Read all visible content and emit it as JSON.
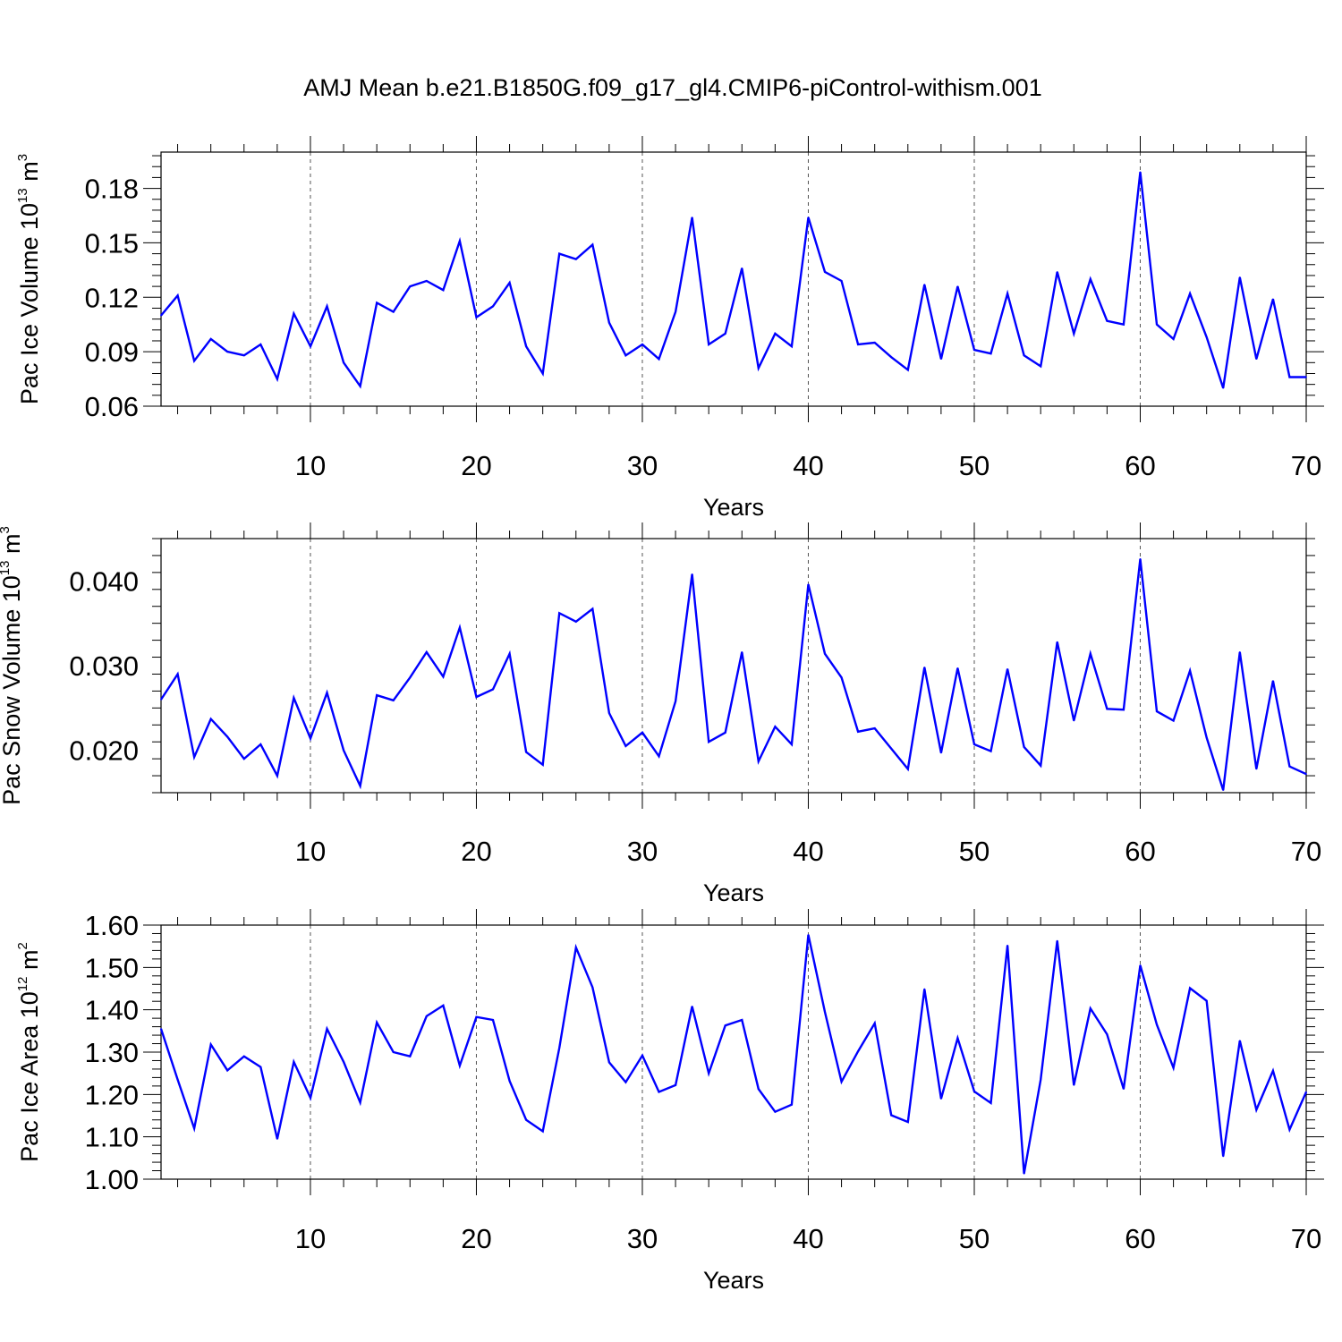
{
  "title": "AMJ Mean b.e21.B1850G.f09_g17_gl4.CMIP6-piControl-withism.001",
  "colors": {
    "series": "#0000ff",
    "axis": "#000000",
    "grid": "#555555",
    "background": "#ffffff"
  },
  "chart_data": [
    {
      "type": "line",
      "title": "AMJ Mean b.e21.B1850G.f09_g17_gl4.CMIP6-piControl-withism.001",
      "xlabel": "Years",
      "ylabel": {
        "text": "Pac Ice Volume 10",
        "exponent": "13",
        "unit": " m",
        "unit_exponent": "3"
      },
      "xlim": [
        1,
        70
      ],
      "ylim": [
        0.06,
        0.2
      ],
      "xticks": [
        10,
        20,
        30,
        40,
        50,
        60,
        70
      ],
      "xtick_labels": [
        "10",
        "20",
        "30",
        "40",
        "50",
        "60",
        "70"
      ],
      "yticks": [
        0.06,
        0.09,
        0.12,
        0.15,
        0.18
      ],
      "ytick_labels": [
        "0.06",
        "0.09",
        "0.12",
        "0.15",
        "0.18"
      ],
      "y_minor_step": 0.006,
      "grid": "vertical dashed at major x ticks",
      "series": [
        {
          "name": "Pac Ice Volume",
          "color": "#0000ff",
          "values": [
            0.11,
            0.121,
            0.085,
            0.097,
            0.09,
            0.088,
            0.094,
            0.075,
            0.111,
            0.093,
            0.115,
            0.084,
            0.071,
            0.117,
            0.112,
            0.126,
            0.129,
            0.124,
            0.151,
            0.109,
            0.115,
            0.128,
            0.093,
            0.078,
            0.144,
            0.141,
            0.149,
            0.106,
            0.088,
            0.094,
            0.086,
            0.112,
            0.164,
            0.094,
            0.1,
            0.136,
            0.081,
            0.1,
            0.093,
            0.164,
            0.134,
            0.129,
            0.094,
            0.095,
            0.087,
            0.08,
            0.127,
            0.086,
            0.126,
            0.091,
            0.089,
            0.122,
            0.088,
            0.082,
            0.134,
            0.1,
            0.13,
            0.107,
            0.105,
            0.189,
            0.105,
            0.097,
            0.122,
            0.098,
            0.07,
            0.131,
            0.086,
            0.119,
            0.076,
            0.076
          ]
        }
      ]
    },
    {
      "type": "line",
      "xlabel": "Years",
      "ylabel": {
        "text": "Pac Snow Volume 10",
        "exponent": "13",
        "unit": " m",
        "unit_exponent": "3"
      },
      "xlim": [
        1,
        70
      ],
      "ylim": [
        0.015,
        0.045
      ],
      "xticks": [
        10,
        20,
        30,
        40,
        50,
        60,
        70
      ],
      "xtick_labels": [
        "10",
        "20",
        "30",
        "40",
        "50",
        "60",
        "70"
      ],
      "yticks": [
        0.02,
        0.03,
        0.04
      ],
      "ytick_labels": [
        "0.020",
        "0.030",
        "0.040"
      ],
      "y_minor_step": 0.002,
      "grid": "vertical dashed at major x ticks",
      "series": [
        {
          "name": "Pac Snow Volume",
          "color": "#0000ff",
          "values": [
            0.026,
            0.029,
            0.0192,
            0.0237,
            0.0216,
            0.019,
            0.0207,
            0.017,
            0.0262,
            0.0214,
            0.0268,
            0.02,
            0.0158,
            0.0265,
            0.0259,
            0.0286,
            0.0316,
            0.0287,
            0.0345,
            0.0263,
            0.0272,
            0.0314,
            0.0198,
            0.0183,
            0.0362,
            0.0352,
            0.0367,
            0.0244,
            0.0205,
            0.0221,
            0.0193,
            0.0258,
            0.0408,
            0.021,
            0.0221,
            0.0316,
            0.0187,
            0.0228,
            0.0207,
            0.0396,
            0.0314,
            0.0286,
            0.0222,
            0.0226,
            0.0202,
            0.0178,
            0.0298,
            0.0197,
            0.0297,
            0.0207,
            0.0199,
            0.0296,
            0.0204,
            0.0182,
            0.0328,
            0.0235,
            0.0314,
            0.0249,
            0.0248,
            0.0426,
            0.0246,
            0.0235,
            0.0294,
            0.0215,
            0.0153,
            0.0316,
            0.0178,
            0.0282,
            0.0181,
            0.0172
          ]
        }
      ]
    },
    {
      "type": "line",
      "xlabel": "Years",
      "ylabel": {
        "text": "Pac Ice Area 10",
        "exponent": "12",
        "unit": " m",
        "unit_exponent": "2"
      },
      "xlim": [
        1,
        70
      ],
      "ylim": [
        1.0,
        1.6
      ],
      "xticks": [
        10,
        20,
        30,
        40,
        50,
        60,
        70
      ],
      "xtick_labels": [
        "10",
        "20",
        "30",
        "40",
        "50",
        "60",
        "70"
      ],
      "yticks": [
        1.0,
        1.1,
        1.2,
        1.3,
        1.4,
        1.5,
        1.6
      ],
      "ytick_labels": [
        "1.00",
        "1.10",
        "1.20",
        "1.30",
        "1.40",
        "1.50",
        "1.60"
      ],
      "y_minor_step": 0.02,
      "grid": "vertical dashed at major x ticks",
      "series": [
        {
          "name": "Pac Ice Area",
          "color": "#0000ff",
          "values": [
            1.355,
            1.235,
            1.12,
            1.318,
            1.257,
            1.29,
            1.265,
            1.095,
            1.277,
            1.192,
            1.355,
            1.277,
            1.181,
            1.37,
            1.3,
            1.29,
            1.385,
            1.41,
            1.268,
            1.383,
            1.376,
            1.232,
            1.14,
            1.113,
            1.31,
            1.547,
            1.453,
            1.276,
            1.229,
            1.292,
            1.206,
            1.222,
            1.408,
            1.25,
            1.363,
            1.376,
            1.213,
            1.159,
            1.176,
            1.577,
            1.395,
            1.23,
            1.302,
            1.368,
            1.151,
            1.135,
            1.449,
            1.19,
            1.333,
            1.207,
            1.18,
            1.552,
            1.013,
            1.235,
            1.563,
            1.222,
            1.403,
            1.342,
            1.213,
            1.505,
            1.365,
            1.263,
            1.451,
            1.421,
            1.054,
            1.327,
            1.164,
            1.256,
            1.117,
            1.206
          ]
        }
      ]
    }
  ]
}
